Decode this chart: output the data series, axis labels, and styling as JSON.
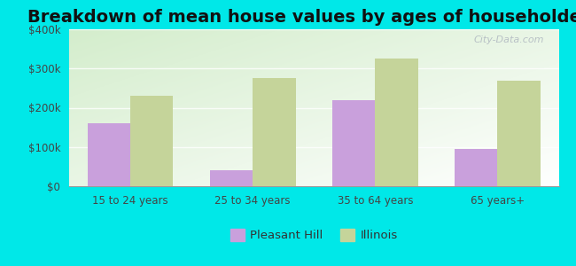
{
  "title": "Breakdown of mean house values by ages of householders",
  "categories": [
    "15 to 24 years",
    "25 to 34 years",
    "35 to 64 years",
    "65 years+"
  ],
  "pleasant_hill": [
    160000,
    40000,
    220000,
    95000
  ],
  "illinois": [
    230000,
    275000,
    325000,
    270000
  ],
  "pleasant_hill_color": "#c9a0dc",
  "illinois_color": "#c5d49a",
  "background_color": "#00e8e8",
  "ylim": [
    0,
    400000
  ],
  "yticks": [
    0,
    100000,
    200000,
    300000,
    400000
  ],
  "ytick_labels": [
    "$0",
    "$100k",
    "$200k",
    "$300k",
    "$400k"
  ],
  "title_fontsize": 14,
  "bar_width": 0.35,
  "legend_labels": [
    "Pleasant Hill",
    "Illinois"
  ],
  "watermark": "City-Data.com"
}
